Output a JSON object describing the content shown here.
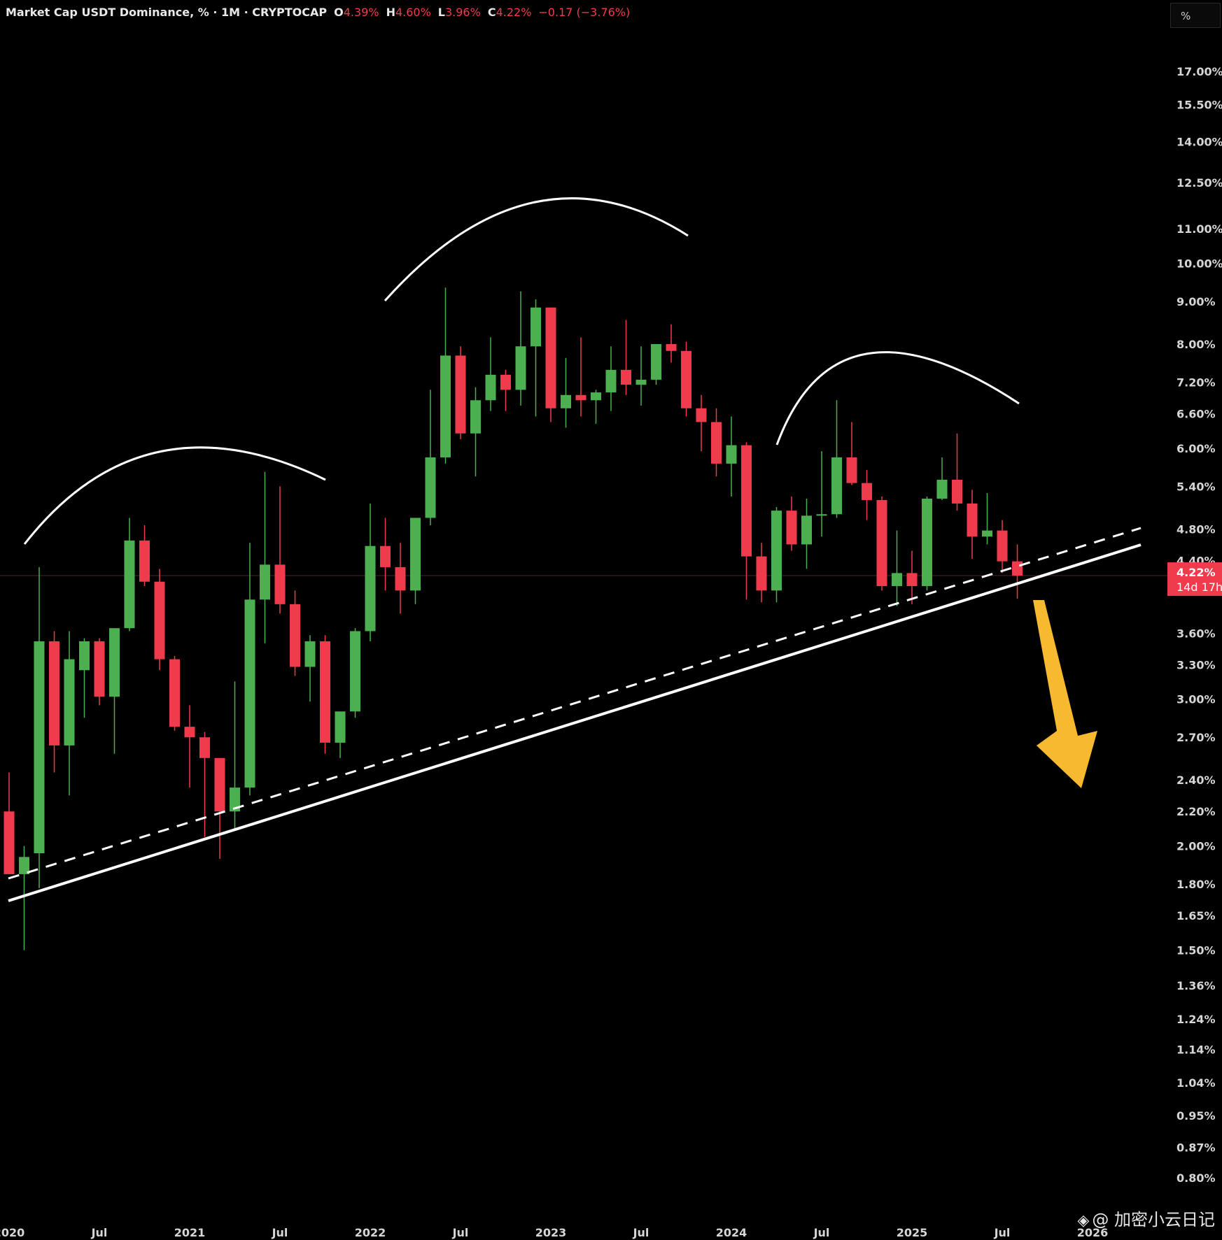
{
  "header": {
    "title": "Market Cap USDT Dominance, % · 1M · CRYPTOCAP",
    "o_label": "O",
    "o_value": "4.39%",
    "h_label": "H",
    "h_value": "4.60%",
    "l_label": "L",
    "l_value": "3.96%",
    "c_label": "C",
    "c_value": "4.22%",
    "change": "−0.17 (−3.76%)"
  },
  "unit_button": "%",
  "watermark": "@ 加密小云日记",
  "colors": {
    "background": "#000000",
    "up": "#4caf50",
    "down": "#ef3b4c",
    "arrow": "#f7b92f",
    "lines": "#ffffff",
    "price_label_bg": "#ef3b4c"
  },
  "chart_data": {
    "type": "candlestick",
    "title": "Market Cap USDT Dominance, % · 1M · CRYPTOCAP",
    "y_scale": "log",
    "ylim": [
      0.78,
      18.5
    ],
    "y_ticks": [
      "17.00%",
      "15.50%",
      "14.00%",
      "12.50%",
      "11.00%",
      "10.00%",
      "9.00%",
      "8.00%",
      "7.20%",
      "6.60%",
      "6.00%",
      "5.40%",
      "4.80%",
      "4.40%",
      "3.60%",
      "3.30%",
      "3.00%",
      "2.70%",
      "2.40%",
      "2.20%",
      "2.00%",
      "1.80%",
      "1.65%",
      "1.50%",
      "1.36%",
      "1.24%",
      "1.14%",
      "1.04%",
      "0.95%",
      "0.87%",
      "0.80%"
    ],
    "x_ticks": [
      {
        "label": "2020",
        "index": 0
      },
      {
        "label": "Jul",
        "index": 6
      },
      {
        "label": "2021",
        "index": 12
      },
      {
        "label": "Jul",
        "index": 18
      },
      {
        "label": "2022",
        "index": 24
      },
      {
        "label": "Jul",
        "index": 30
      },
      {
        "label": "2023",
        "index": 36
      },
      {
        "label": "Jul",
        "index": 42
      },
      {
        "label": "2024",
        "index": 48
      },
      {
        "label": "Jul",
        "index": 54
      },
      {
        "label": "2025",
        "index": 60
      },
      {
        "label": "Jul",
        "index": 66
      },
      {
        "label": "2026",
        "index": 72
      }
    ],
    "current_price": {
      "value": 4.22,
      "label": "4.22%",
      "countdown": "14d 17h"
    },
    "candles": [
      {
        "o": 2.2,
        "h": 2.45,
        "l": 1.85,
        "c": 1.85
      },
      {
        "o": 1.85,
        "h": 2.0,
        "l": 1.5,
        "c": 1.94
      },
      {
        "o": 1.96,
        "h": 4.32,
        "l": 1.78,
        "c": 3.52
      },
      {
        "o": 3.52,
        "h": 3.62,
        "l": 2.45,
        "c": 2.64
      },
      {
        "o": 2.64,
        "h": 3.62,
        "l": 2.3,
        "c": 3.35
      },
      {
        "o": 3.25,
        "h": 3.55,
        "l": 2.85,
        "c": 3.52
      },
      {
        "o": 3.52,
        "h": 3.55,
        "l": 2.95,
        "c": 3.02
      },
      {
        "o": 3.02,
        "h": 3.62,
        "l": 2.58,
        "c": 3.65
      },
      {
        "o": 3.65,
        "h": 4.95,
        "l": 3.62,
        "c": 4.65
      },
      {
        "o": 4.65,
        "h": 4.85,
        "l": 4.1,
        "c": 4.15
      },
      {
        "o": 4.15,
        "h": 4.3,
        "l": 3.25,
        "c": 3.35
      },
      {
        "o": 3.35,
        "h": 3.38,
        "l": 2.75,
        "c": 2.78
      },
      {
        "o": 2.78,
        "h": 2.95,
        "l": 2.35,
        "c": 2.7
      },
      {
        "o": 2.7,
        "h": 2.74,
        "l": 2.05,
        "c": 2.55
      },
      {
        "o": 2.55,
        "h": 2.55,
        "l": 1.93,
        "c": 2.2
      },
      {
        "o": 2.2,
        "h": 3.15,
        "l": 2.1,
        "c": 2.35
      },
      {
        "o": 2.35,
        "h": 4.62,
        "l": 2.3,
        "c": 3.95
      },
      {
        "o": 3.95,
        "h": 5.62,
        "l": 3.5,
        "c": 4.35
      },
      {
        "o": 4.35,
        "h": 5.4,
        "l": 3.8,
        "c": 3.9
      },
      {
        "o": 3.9,
        "h": 4.05,
        "l": 3.2,
        "c": 3.28
      },
      {
        "o": 3.28,
        "h": 3.58,
        "l": 2.98,
        "c": 3.52
      },
      {
        "o": 3.52,
        "h": 3.58,
        "l": 2.58,
        "c": 2.66
      },
      {
        "o": 2.66,
        "h": 2.88,
        "l": 2.55,
        "c": 2.9
      },
      {
        "o": 2.9,
        "h": 3.65,
        "l": 2.85,
        "c": 3.62
      },
      {
        "o": 3.62,
        "h": 5.15,
        "l": 3.52,
        "c": 4.58
      },
      {
        "o": 4.58,
        "h": 4.95,
        "l": 4.05,
        "c": 4.32
      },
      {
        "o": 4.32,
        "h": 4.62,
        "l": 3.8,
        "c": 4.05
      },
      {
        "o": 4.05,
        "h": 4.95,
        "l": 3.9,
        "c": 4.95
      },
      {
        "o": 4.95,
        "h": 7.05,
        "l": 4.85,
        "c": 5.85
      },
      {
        "o": 5.85,
        "h": 9.35,
        "l": 5.75,
        "c": 7.75
      },
      {
        "o": 7.75,
        "h": 7.95,
        "l": 6.15,
        "c": 6.25
      },
      {
        "o": 6.25,
        "h": 7.1,
        "l": 5.55,
        "c": 6.85
      },
      {
        "o": 6.85,
        "h": 8.15,
        "l": 6.65,
        "c": 7.35
      },
      {
        "o": 7.35,
        "h": 7.45,
        "l": 6.65,
        "c": 7.05
      },
      {
        "o": 7.05,
        "h": 9.25,
        "l": 6.75,
        "c": 7.95
      },
      {
        "o": 7.95,
        "h": 9.05,
        "l": 6.55,
        "c": 8.85
      },
      {
        "o": 8.85,
        "h": 8.85,
        "l": 6.45,
        "c": 6.7
      },
      {
        "o": 6.7,
        "h": 7.7,
        "l": 6.35,
        "c": 6.95
      },
      {
        "o": 6.95,
        "h": 8.15,
        "l": 6.55,
        "c": 6.85
      },
      {
        "o": 6.85,
        "h": 7.05,
        "l": 6.42,
        "c": 7.0
      },
      {
        "o": 7.0,
        "h": 7.95,
        "l": 6.65,
        "c": 7.45
      },
      {
        "o": 7.45,
        "h": 8.55,
        "l": 6.95,
        "c": 7.15
      },
      {
        "o": 7.15,
        "h": 7.95,
        "l": 6.75,
        "c": 7.25
      },
      {
        "o": 7.25,
        "h": 7.95,
        "l": 7.15,
        "c": 8.0
      },
      {
        "o": 8.0,
        "h": 8.45,
        "l": 7.6,
        "c": 7.85
      },
      {
        "o": 7.85,
        "h": 8.05,
        "l": 6.55,
        "c": 6.7
      },
      {
        "o": 6.7,
        "h": 6.95,
        "l": 5.95,
        "c": 6.45
      },
      {
        "o": 6.45,
        "h": 6.7,
        "l": 5.55,
        "c": 5.75
      },
      {
        "o": 5.75,
        "h": 6.55,
        "l": 5.25,
        "c": 6.05
      },
      {
        "o": 6.05,
        "h": 6.1,
        "l": 3.95,
        "c": 4.45
      },
      {
        "o": 4.45,
        "h": 4.62,
        "l": 3.92,
        "c": 4.05
      },
      {
        "o": 4.05,
        "h": 5.1,
        "l": 3.92,
        "c": 5.05
      },
      {
        "o": 5.05,
        "h": 5.25,
        "l": 4.52,
        "c": 4.6
      },
      {
        "o": 4.6,
        "h": 5.22,
        "l": 4.3,
        "c": 4.98
      },
      {
        "o": 4.98,
        "h": 5.95,
        "l": 4.7,
        "c": 5.0
      },
      {
        "o": 5.0,
        "h": 6.85,
        "l": 4.95,
        "c": 5.85
      },
      {
        "o": 5.85,
        "h": 6.45,
        "l": 5.42,
        "c": 5.45
      },
      {
        "o": 5.45,
        "h": 5.65,
        "l": 4.92,
        "c": 5.2
      },
      {
        "o": 5.2,
        "h": 5.25,
        "l": 4.05,
        "c": 4.1
      },
      {
        "o": 4.1,
        "h": 4.78,
        "l": 3.88,
        "c": 4.25
      },
      {
        "o": 4.25,
        "h": 4.52,
        "l": 3.9,
        "c": 4.1
      },
      {
        "o": 4.1,
        "h": 5.25,
        "l": 4.05,
        "c": 5.22
      },
      {
        "o": 5.22,
        "h": 5.85,
        "l": 5.2,
        "c": 5.5
      },
      {
        "o": 5.5,
        "h": 6.25,
        "l": 5.05,
        "c": 5.15
      },
      {
        "o": 5.15,
        "h": 5.35,
        "l": 4.42,
        "c": 4.7
      },
      {
        "o": 4.7,
        "h": 5.3,
        "l": 4.6,
        "c": 4.78
      },
      {
        "o": 4.78,
        "h": 4.92,
        "l": 4.25,
        "c": 4.39
      },
      {
        "o": 4.39,
        "h": 4.6,
        "l": 3.96,
        "c": 4.22
      }
    ]
  }
}
